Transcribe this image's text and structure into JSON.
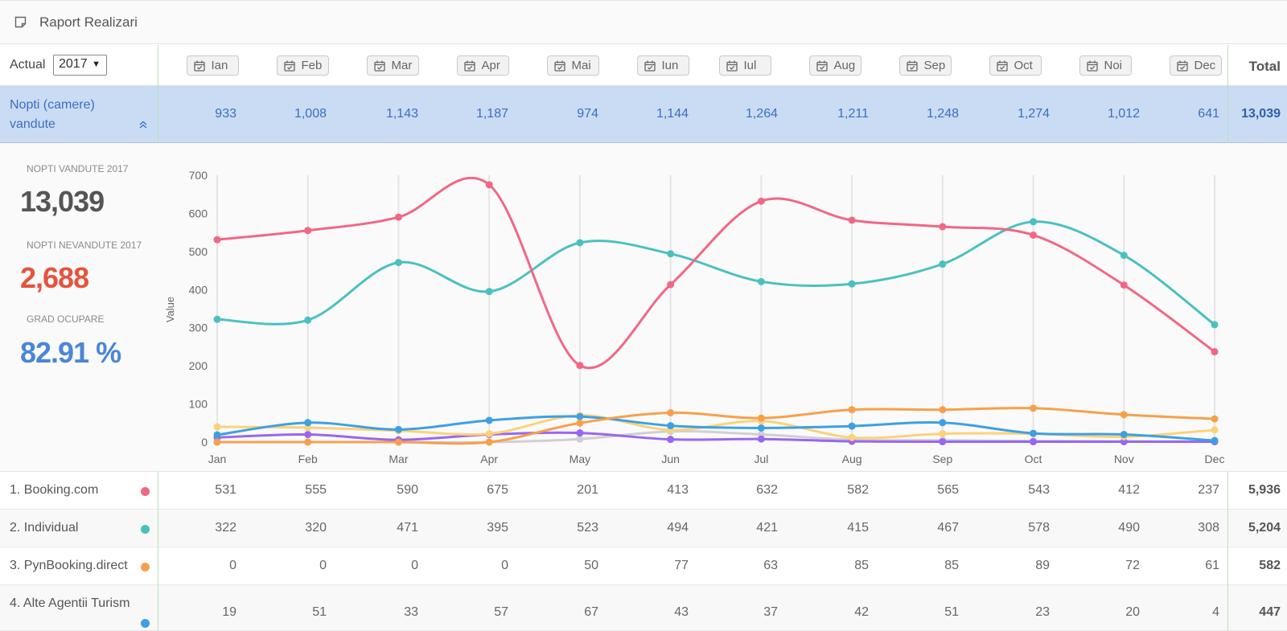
{
  "header": {
    "title": "Raport Realizari",
    "icon": "note-icon"
  },
  "filter": {
    "label": "Actual",
    "year": "2017",
    "arrow": "▼"
  },
  "months": [
    "Ian",
    "Feb",
    "Mar",
    "Apr",
    "Mai",
    "Iun",
    "Iul",
    "Aug",
    "Sep",
    "Oct",
    "Noi",
    "Dec"
  ],
  "total_label": "Total",
  "summary": {
    "label": "Nopti (camere) vandute",
    "values": [
      "933",
      "1,008",
      "1,143",
      "1,187",
      "974",
      "1,144",
      "1,264",
      "1,211",
      "1,248",
      "1,274",
      "1,012",
      "641"
    ],
    "total": "13,039"
  },
  "kpis": [
    {
      "label": "NOPTI VANDUTE 2017",
      "value": "13,039",
      "color": "#555555"
    },
    {
      "label": "NOPTI NEVANDUTE 2017",
      "value": "2,688",
      "color": "#e5533d"
    },
    {
      "label": "GRAD OCUPARE",
      "value": "82.91 %",
      "color": "#4a86d6"
    }
  ],
  "chart_data": {
    "type": "line",
    "categories": [
      "Jan",
      "Feb",
      "Mar",
      "Apr",
      "May",
      "Jun",
      "Jul",
      "Aug",
      "Sep",
      "Oct",
      "Nov",
      "Dec"
    ],
    "ylabel": "Value",
    "ylim": [
      0,
      700
    ],
    "yticks": [
      0,
      100,
      200,
      300,
      400,
      500,
      600,
      700
    ],
    "grid": "vertical",
    "series": [
      {
        "name": "1. Booking.com",
        "color": "#f16785",
        "values": [
          531,
          555,
          590,
          675,
          201,
          413,
          632,
          582,
          565,
          543,
          412,
          237
        ]
      },
      {
        "name": "2. Individual",
        "color": "#4bc0c0",
        "values": [
          322,
          320,
          471,
          395,
          523,
          494,
          421,
          415,
          467,
          578,
          490,
          308
        ]
      },
      {
        "name": "3. PynBooking.direct",
        "color": "#f7a04b",
        "values": [
          0,
          0,
          0,
          0,
          50,
          77,
          63,
          85,
          85,
          89,
          72,
          61
        ]
      },
      {
        "name": "4. Alte Agentii Turism",
        "color": "#3da0e3",
        "values": [
          19,
          51,
          33,
          57,
          67,
          43,
          37,
          42,
          51,
          23,
          20,
          4
        ]
      },
      {
        "color": "#fbd27a",
        "values": [
          40,
          38,
          30,
          22,
          70,
          32,
          55,
          12,
          22,
          22,
          14,
          32
        ]
      },
      {
        "color": "#9966f2",
        "values": [
          12,
          20,
          6,
          20,
          24,
          7,
          8,
          2,
          1,
          1,
          1,
          1
        ]
      },
      {
        "color": "#cfcfd4",
        "values": [
          0,
          0,
          0,
          0,
          8,
          28,
          20,
          6,
          5,
          3,
          2,
          2
        ]
      }
    ]
  },
  "rows": [
    {
      "label": "1. Booking.com",
      "color": "#f16785",
      "values": [
        "531",
        "555",
        "590",
        "675",
        "201",
        "413",
        "632",
        "582",
        "565",
        "543",
        "412",
        "237"
      ],
      "total": "5,936"
    },
    {
      "label": "2. Individual",
      "color": "#4bc0c0",
      "values": [
        "322",
        "320",
        "471",
        "395",
        "523",
        "494",
        "421",
        "415",
        "467",
        "578",
        "490",
        "308"
      ],
      "total": "5,204"
    },
    {
      "label": "3. PynBooking.direct",
      "color": "#f7a04b",
      "values": [
        "0",
        "0",
        "0",
        "0",
        "50",
        "77",
        "63",
        "85",
        "85",
        "89",
        "72",
        "61"
      ],
      "total": "582"
    },
    {
      "label": "4. Alte Agentii Turism",
      "color": "#3da0e3",
      "values": [
        "19",
        "51",
        "33",
        "57",
        "67",
        "43",
        "37",
        "42",
        "51",
        "23",
        "20",
        "4"
      ],
      "total": "447"
    }
  ]
}
